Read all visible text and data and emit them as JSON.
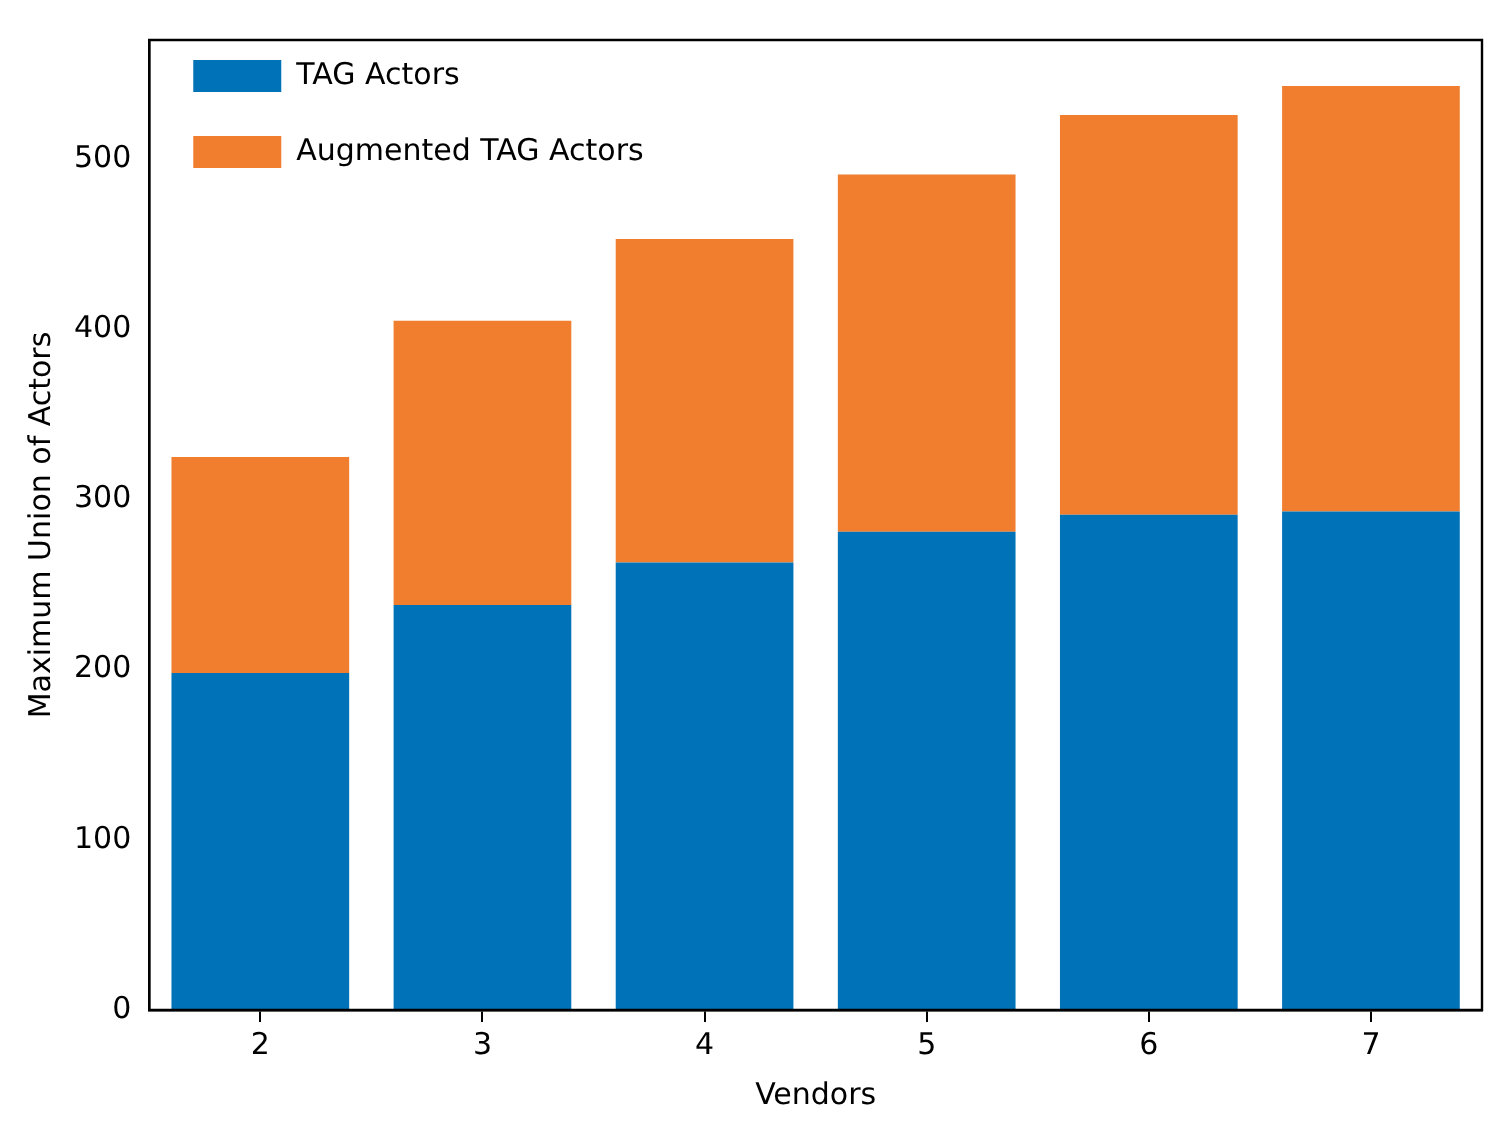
{
  "chart_data": {
    "type": "bar",
    "xlabel": "Vendors",
    "ylabel": "Maximum Union of Actors",
    "categories": [
      "2",
      "3",
      "4",
      "5",
      "6",
      "7"
    ],
    "stacked": true,
    "series": [
      {
        "name": "TAG Actors",
        "color": "#0072b8",
        "values": [
          198,
          238,
          263,
          281,
          291,
          293
        ]
      },
      {
        "name": "Augmented TAG Actors",
        "color": "#f07e2e",
        "values": [
          127,
          167,
          190,
          210,
          235,
          250
        ]
      }
    ],
    "ylim": [
      0,
      570
    ],
    "yticks": [
      0,
      100,
      200,
      300,
      400,
      500
    ],
    "legend": "top left",
    "grid": false
  }
}
